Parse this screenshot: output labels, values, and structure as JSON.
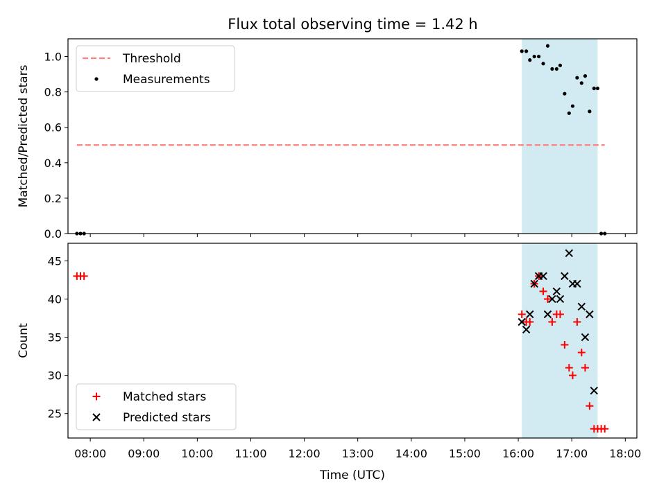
{
  "figure": {
    "title": "Flux total observing time = 1.42 h"
  },
  "chart_data": [
    {
      "type": "scatter",
      "panel": "top",
      "ylabel": "Matched/Predicted stars",
      "xlabel": "",
      "xlim": [
        "07:35",
        "18:13"
      ],
      "ylim": [
        0,
        1.1
      ],
      "yticks": [
        0.0,
        0.2,
        0.4,
        0.6,
        0.8,
        1.0
      ],
      "xticks": [
        "08:00",
        "09:00",
        "10:00",
        "11:00",
        "12:00",
        "13:00",
        "14:00",
        "15:00",
        "16:00",
        "17:00",
        "18:00"
      ],
      "shaded_interval": {
        "start": "16:04",
        "end": "17:29",
        "color": "#add8e6"
      },
      "legend": {
        "position": "top-left",
        "entries": [
          "Threshold",
          "Measurements"
        ]
      },
      "series": [
        {
          "name": "Threshold",
          "style": "dashed-line",
          "color": "#ff7f7f",
          "x": [
            "07:45",
            "17:37"
          ],
          "y": [
            0.5,
            0.5
          ]
        },
        {
          "name": "Measurements",
          "style": "dot",
          "color": "#000000",
          "x": [
            "07:45",
            "07:49",
            "07:53",
            "16:04",
            "16:09",
            "16:13",
            "16:18",
            "16:23",
            "16:28",
            "16:33",
            "16:38",
            "16:43",
            "16:47",
            "16:52",
            "16:57",
            "17:01",
            "17:06",
            "17:11",
            "17:15",
            "17:20",
            "17:25",
            "17:29",
            "17:33",
            "17:37"
          ],
          "y": [
            0.0,
            0.0,
            0.0,
            1.03,
            1.03,
            0.98,
            1.0,
            1.0,
            0.96,
            1.06,
            0.93,
            0.93,
            0.95,
            0.79,
            0.68,
            0.72,
            0.88,
            0.85,
            0.89,
            0.69,
            0.82,
            0.82,
            0.0,
            0.0
          ],
          "y_note": ""
        }
      ]
    },
    {
      "type": "scatter",
      "panel": "bottom",
      "ylabel": "Count",
      "xlabel": "Time (UTC)",
      "xlim": [
        "07:35",
        "18:13"
      ],
      "ylim": [
        21.8,
        47.3
      ],
      "yticks": [
        25,
        30,
        35,
        40,
        45
      ],
      "xticks": [
        "08:00",
        "09:00",
        "10:00",
        "11:00",
        "12:00",
        "13:00",
        "14:00",
        "15:00",
        "16:00",
        "17:00",
        "18:00"
      ],
      "shaded_interval": {
        "start": "16:04",
        "end": "17:29",
        "color": "#add8e6"
      },
      "legend": {
        "position": "bottom-left",
        "entries": [
          "Matched stars",
          "Predicted stars"
        ]
      },
      "series": [
        {
          "name": "Matched stars",
          "marker": "plus",
          "color": "#ff0000",
          "x": [
            "07:45",
            "07:49",
            "07:53",
            "16:04",
            "16:09",
            "16:13",
            "16:18",
            "16:23",
            "16:28",
            "16:33",
            "16:38",
            "16:43",
            "16:47",
            "16:52",
            "16:57",
            "17:01",
            "17:06",
            "17:11",
            "17:15",
            "17:20",
            "17:25",
            "17:29",
            "17:33",
            "17:37"
          ],
          "y": [
            43,
            43,
            43,
            38,
            37,
            37,
            42,
            43,
            41,
            40,
            37,
            38,
            38,
            34,
            31,
            30,
            37,
            33,
            31,
            26,
            23,
            23,
            23,
            23
          ]
        },
        {
          "name": "Predicted stars",
          "marker": "x",
          "color": "#000000",
          "x": [
            "16:04",
            "16:09",
            "16:13",
            "16:18",
            "16:23",
            "16:28",
            "16:33",
            "16:38",
            "16:43",
            "16:47",
            "16:52",
            "16:57",
            "17:01",
            "17:06",
            "17:11",
            "17:15",
            "17:20",
            "17:25"
          ],
          "y": [
            37,
            36,
            38,
            42,
            43,
            43,
            38,
            40,
            41,
            40,
            43,
            46,
            42,
            42,
            39,
            35,
            38,
            28
          ]
        }
      ]
    }
  ]
}
